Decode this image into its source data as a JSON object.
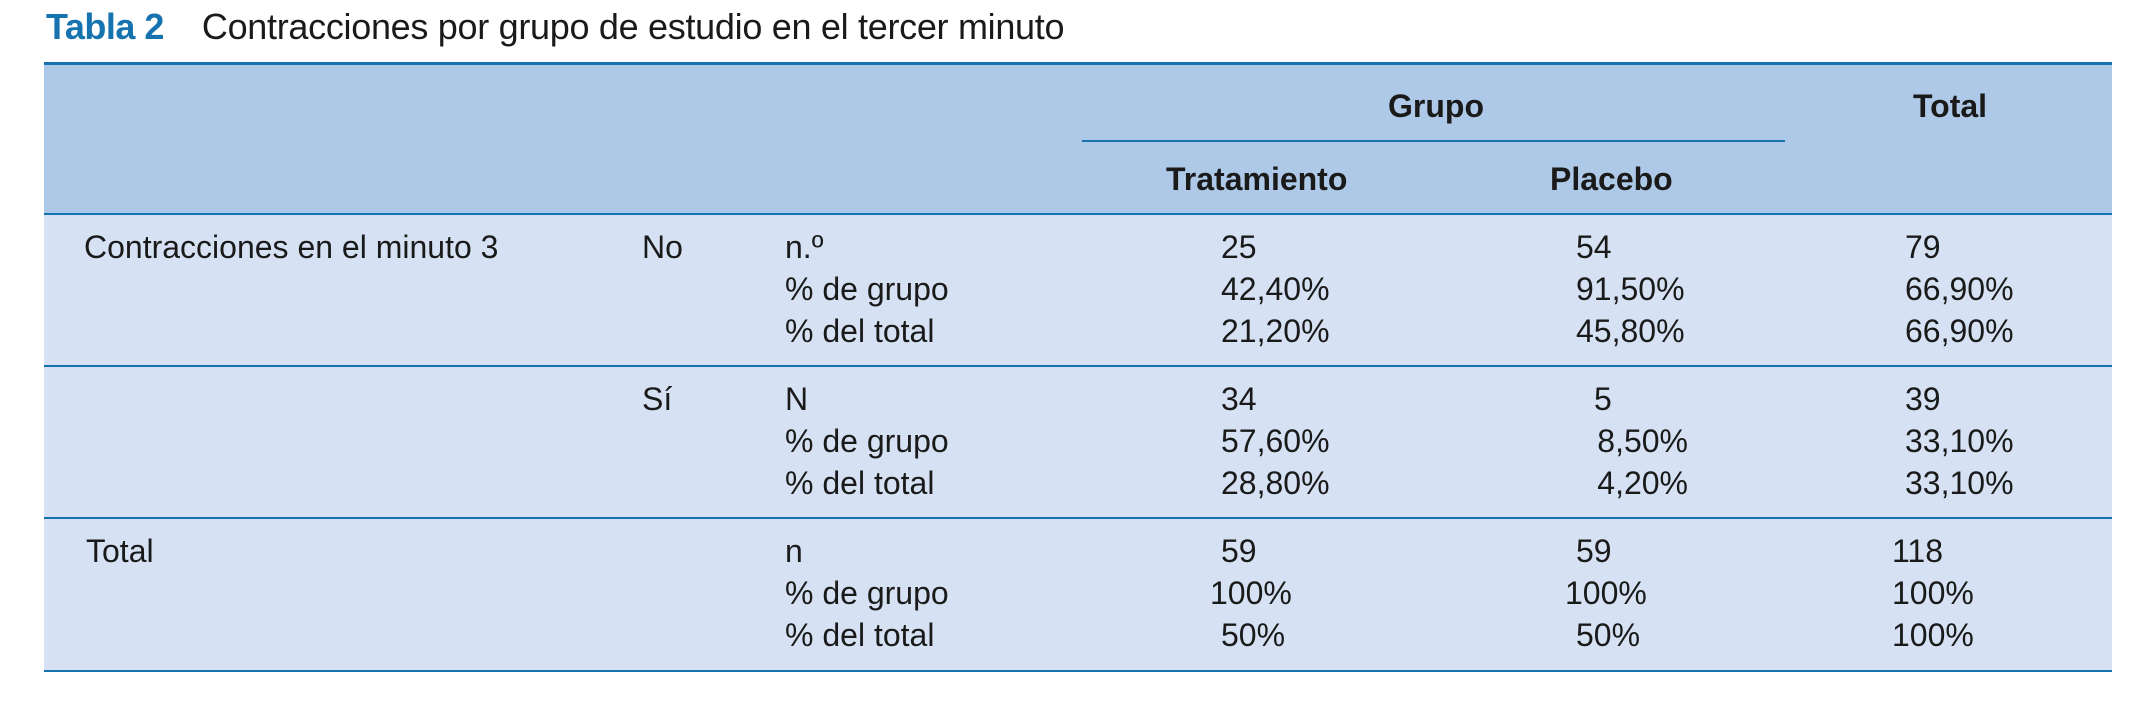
{
  "caption": {
    "label": "Tabla 2",
    "title": "Contracciones por grupo de estudio en el tercer minuto"
  },
  "header": {
    "group": "Grupo",
    "total": "Total",
    "treatment": "Tratamiento",
    "placebo": "Placebo"
  },
  "sections": [
    {
      "row_label": "Contracciones en el minuto 3",
      "sub_label": "No",
      "stats": [
        "n.º",
        "% de grupo",
        "% del total"
      ],
      "treatment": [
        "25",
        "42,40%",
        "21,20%"
      ],
      "placebo": [
        "54",
        "91,50%",
        "45,80%"
      ],
      "total": [
        "79",
        "66,90%",
        "66,90%"
      ]
    },
    {
      "row_label": "",
      "sub_label": "Sí",
      "stats": [
        "N",
        "% de grupo",
        "% del total"
      ],
      "treatment": [
        "34",
        "57,60%",
        "28,80%"
      ],
      "placebo": [
        "5",
        "8,50%",
        "4,20%"
      ],
      "total": [
        "39",
        "33,10%",
        "33,10%"
      ]
    },
    {
      "row_label": "Total",
      "sub_label": "",
      "stats": [
        "n",
        "% de grupo",
        "% del total"
      ],
      "treatment": [
        "59",
        "100%",
        "50%"
      ],
      "placebo": [
        "59",
        "100%",
        "50%"
      ],
      "total": [
        "118",
        "100%",
        "100%"
      ]
    }
  ]
}
